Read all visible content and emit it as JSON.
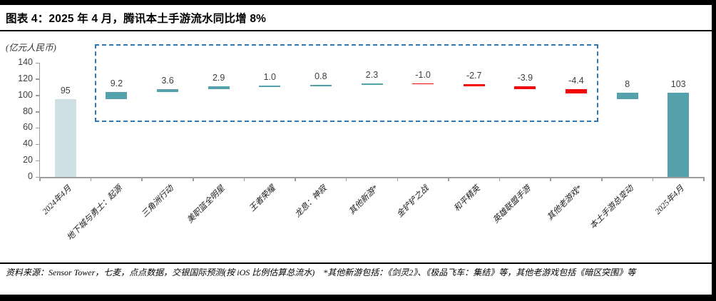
{
  "header": {
    "title": "图表 4：2025 年 4 月，腾讯本土手游流水同比增 8%"
  },
  "chart_data": {
    "type": "bar",
    "subtype": "waterfall",
    "title": "2025 年 4 月，腾讯本土手游流水同比增 8%",
    "unit_label": "(亿元人民币)",
    "xlabel": "",
    "ylabel": "亿元人民币",
    "ylim": [
      0,
      140
    ],
    "yticks": [
      0,
      20,
      40,
      60,
      80,
      100,
      120,
      140
    ],
    "grid": false,
    "legend": "none",
    "categories": [
      "2024年4月",
      "地下城与勇士：起源",
      "三角洲行动",
      "美职篮全明星",
      "王者荣耀",
      "龙息：神寂",
      "其他新游*",
      "金铲铲之战",
      "和平精英",
      "英雄联盟手游",
      "其他老游戏*",
      "本土手游总变动",
      "2025年4月"
    ],
    "values": [
      95,
      9.2,
      3.6,
      2.9,
      1.0,
      0.8,
      2.3,
      -1.0,
      -2.7,
      -3.9,
      -4.4,
      8,
      103
    ],
    "value_labels": [
      "95",
      "9.2",
      "3.6",
      "2.9",
      "1.0",
      "0.8",
      "2.3",
      "-1.0",
      "-2.7",
      "-3.9",
      "-4.4",
      "8",
      "103"
    ],
    "kinds": [
      "total",
      "delta",
      "delta",
      "delta",
      "delta",
      "delta",
      "delta",
      "delta",
      "delta",
      "delta",
      "delta",
      "subtotal",
      "total"
    ],
    "colors": {
      "start_total": "#cfe0e4",
      "positive": "#55a1ac",
      "negative": "#f40606",
      "total": "#55a1ac",
      "axis": "#9c9c9c",
      "label_text": "#3f3f3f",
      "highlight_box_border": "#2f76b5"
    },
    "annotations": {
      "highlight_box": "dashed blue rectangle around the per-game delta bars (indices 1-10)"
    }
  },
  "footer": {
    "source_note": "资料来源：Sensor Tower，七麦，点点数据，交银国际预测(按 iOS 比例估算总流水)　*其他新游包括：《剑灵2》、《极品飞车：集结》等，其他老游戏包括《暗区突围》等"
  }
}
